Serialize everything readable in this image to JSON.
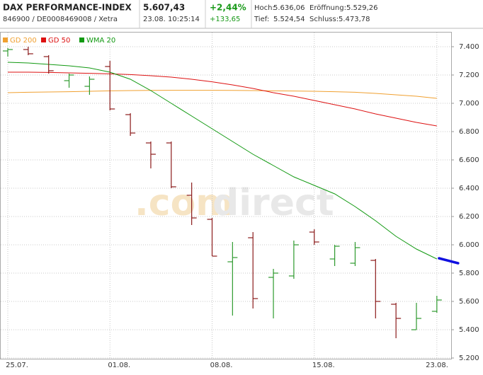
{
  "header": {
    "name": "DAX PERFORMANCE-INDEX",
    "ids": "846900 / DE0008469008 / Xetra",
    "price": "5.607,43",
    "time": "23.08. 10:25:14",
    "change_pct": "+2,44%",
    "change_abs": "+133,65",
    "high_label": "Hoch:",
    "high": "5.636,06",
    "open_label": "Eröffnung:",
    "open": "5.529,26",
    "low_label": "Tief:",
    "low": "5.524,54",
    "close_label": "Schluss:",
    "close": "5.473,78"
  },
  "chart_data": {
    "type": "ohlc",
    "watermark": [
      ".com",
      "direct"
    ],
    "categories": [
      "25.07.",
      null,
      null,
      null,
      null,
      "01.08.",
      null,
      null,
      null,
      null,
      "08.08.",
      null,
      null,
      null,
      null,
      "15.08.",
      null,
      null,
      null,
      null,
      null,
      "23.08."
    ],
    "open": [
      7370,
      7380,
      7330,
      7160,
      7120,
      7260,
      6920,
      6720,
      6720,
      6350,
      6180,
      5880,
      6050,
      5770,
      5780,
      6090,
      5900,
      5870,
      5890,
      5580,
      5400,
      5530
    ],
    "high": [
      7390,
      7400,
      7340,
      7210,
      7190,
      7300,
      6930,
      6730,
      6730,
      6440,
      6190,
      6020,
      6090,
      5830,
      6030,
      6110,
      6000,
      6020,
      5900,
      5590,
      5590,
      5640
    ],
    "low": [
      7330,
      7340,
      7210,
      7110,
      7060,
      6950,
      6770,
      6540,
      6400,
      6140,
      5920,
      5500,
      5550,
      5480,
      5760,
      6000,
      5850,
      5850,
      5480,
      5340,
      5400,
      5520
    ],
    "close": [
      7380,
      7350,
      7230,
      7200,
      7170,
      6960,
      6790,
      6640,
      6410,
      6190,
      5920,
      5910,
      5620,
      5800,
      6000,
      6020,
      5990,
      5980,
      5600,
      5480,
      5480,
      5610
    ],
    "up_color": "#2e9a2e",
    "down_color": "#8b1a1a",
    "series": [
      {
        "name": "GD 200",
        "color": "#f0a030",
        "values": [
          7075,
          7078,
          7080,
          7082,
          7085,
          7088,
          7090,
          7091,
          7092,
          7092,
          7092,
          7091,
          7090,
          7088,
          7087,
          7085,
          7082,
          7078,
          7070,
          7060,
          7050,
          7035
        ]
      },
      {
        "name": "GD 50",
        "color": "#dd1111",
        "values": [
          7220,
          7220,
          7218,
          7215,
          7212,
          7208,
          7203,
          7195,
          7185,
          7170,
          7152,
          7130,
          7105,
          7075,
          7050,
          7020,
          6990,
          6960,
          6925,
          6895,
          6865,
          6840
        ]
      },
      {
        "name": "WMA 20",
        "color": "#119911",
        "values": [
          7290,
          7285,
          7275,
          7265,
          7250,
          7220,
          7170,
          7090,
          7000,
          6910,
          6820,
          6730,
          6640,
          6560,
          6480,
          6420,
          6360,
          6270,
          6170,
          6060,
          5970,
          5900
        ]
      }
    ],
    "extension": {
      "color": "#1010e0",
      "values": [
        5905,
        5870
      ]
    },
    "ylim": [
      5190,
      7500
    ],
    "yticks": [
      {
        "value": 5200,
        "label": "5.200"
      },
      {
        "value": 5400,
        "label": "5.400"
      },
      {
        "value": 5600,
        "label": "5.600"
      },
      {
        "value": 5800,
        "label": "5.800"
      },
      {
        "value": 6000,
        "label": "6.000"
      },
      {
        "value": 6200,
        "label": "6.200"
      },
      {
        "value": 6400,
        "label": "6.400"
      },
      {
        "value": 6600,
        "label": "6.600"
      },
      {
        "value": 6800,
        "label": "6.800"
      },
      {
        "value": 7000,
        "label": "7.000"
      },
      {
        "value": 7200,
        "label": "7.200"
      },
      {
        "value": 7400,
        "label": "7.400"
      }
    ],
    "grid": true
  }
}
